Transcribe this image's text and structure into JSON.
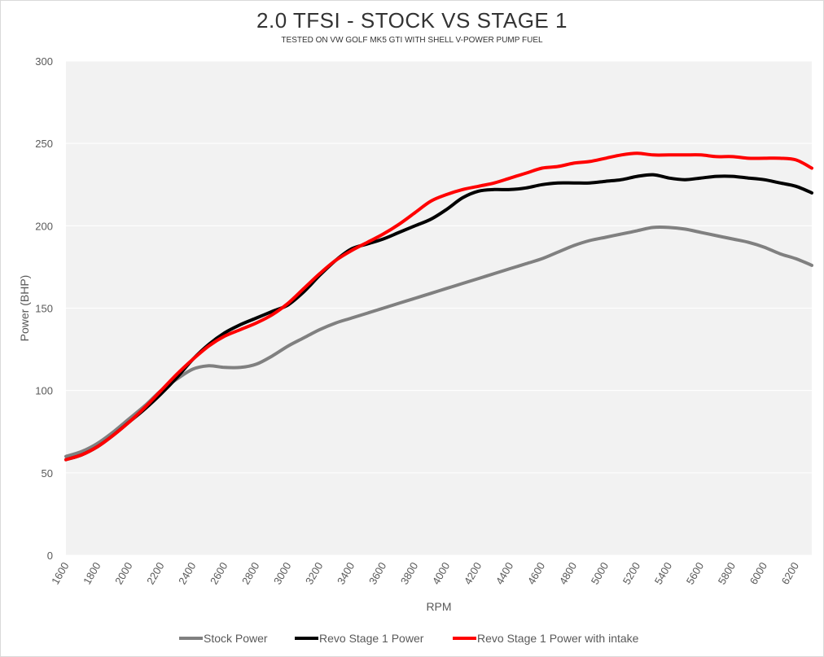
{
  "chart_data": {
    "type": "line",
    "title": "2.0 TFSI - STOCK VS STAGE 1",
    "subtitle": "TESTED ON VW GOLF MK5 GTI WITH SHELL V-POWER PUMP FUEL",
    "xlabel": "RPM",
    "ylabel": "Power (BHP)",
    "xlim": [
      1600,
      6300
    ],
    "ylim": [
      0,
      300
    ],
    "y_ticks": [
      0,
      50,
      100,
      150,
      200,
      250,
      300
    ],
    "x_ticks": [
      1600,
      1800,
      2000,
      2200,
      2400,
      2600,
      2800,
      3000,
      3200,
      3400,
      3600,
      3800,
      4000,
      4200,
      4400,
      4600,
      4800,
      5000,
      5200,
      5400,
      5600,
      5800,
      6000,
      6200
    ],
    "grid": "horizontal",
    "plot_background": "#f2f2f2",
    "legend_position": "bottom",
    "series": [
      {
        "name": "Stock Power",
        "color": "#808080",
        "x": [
          1600,
          1700,
          1800,
          1900,
          2000,
          2100,
          2200,
          2300,
          2400,
          2500,
          2600,
          2700,
          2800,
          2900,
          3000,
          3100,
          3200,
          3300,
          3400,
          3500,
          3600,
          3700,
          3800,
          3900,
          4000,
          4100,
          4200,
          4300,
          4400,
          4500,
          4600,
          4700,
          4800,
          4900,
          5000,
          5100,
          5200,
          5300,
          5400,
          5500,
          5600,
          5700,
          5800,
          5900,
          6000,
          6100,
          6200,
          6300
        ],
        "values": [
          60,
          63,
          68,
          75,
          83,
          91,
          100,
          107,
          113,
          115,
          114,
          114,
          116,
          121,
          127,
          132,
          137,
          141,
          144,
          147,
          150,
          153,
          156,
          159,
          162,
          165,
          168,
          171,
          174,
          177,
          180,
          184,
          188,
          191,
          193,
          195,
          197,
          199,
          199,
          198,
          196,
          194,
          192,
          190,
          187,
          183,
          180,
          176
        ]
      },
      {
        "name": "Revo Stage 1 Power",
        "color": "#000000",
        "x": [
          1600,
          1700,
          1800,
          1900,
          2000,
          2100,
          2200,
          2300,
          2400,
          2500,
          2600,
          2700,
          2800,
          2900,
          3000,
          3100,
          3200,
          3300,
          3400,
          3500,
          3600,
          3700,
          3800,
          3900,
          4000,
          4100,
          4200,
          4300,
          4400,
          4500,
          4600,
          4700,
          4800,
          4900,
          5000,
          5100,
          5200,
          5300,
          5400,
          5500,
          5600,
          5700,
          5800,
          5900,
          6000,
          6100,
          6200,
          6300
        ],
        "values": [
          58,
          61,
          66,
          73,
          81,
          89,
          98,
          108,
          119,
          128,
          135,
          140,
          144,
          148,
          152,
          160,
          170,
          179,
          186,
          189,
          192,
          196,
          200,
          204,
          210,
          217,
          221,
          222,
          222,
          223,
          225,
          226,
          226,
          226,
          227,
          228,
          230,
          231,
          229,
          228,
          229,
          230,
          230,
          229,
          228,
          226,
          224,
          220
        ]
      },
      {
        "name": "Revo Stage 1 Power with intake",
        "color": "#ff0000",
        "x": [
          1600,
          1700,
          1800,
          1900,
          2000,
          2100,
          2200,
          2300,
          2400,
          2500,
          2600,
          2700,
          2800,
          2900,
          3000,
          3100,
          3200,
          3300,
          3400,
          3500,
          3600,
          3700,
          3800,
          3900,
          4000,
          4100,
          4200,
          4300,
          4400,
          4500,
          4600,
          4700,
          4800,
          4900,
          5000,
          5100,
          5200,
          5300,
          5400,
          5500,
          5600,
          5700,
          5800,
          5900,
          6000,
          6100,
          6200,
          6300
        ],
        "values": [
          58,
          61,
          66,
          73,
          81,
          90,
          100,
          110,
          119,
          127,
          133,
          137,
          141,
          146,
          153,
          162,
          171,
          179,
          185,
          190,
          195,
          201,
          208,
          215,
          219,
          222,
          224,
          226,
          229,
          232,
          235,
          236,
          238,
          239,
          241,
          243,
          244,
          243,
          243,
          243,
          243,
          242,
          242,
          241,
          241,
          241,
          240,
          235
        ]
      }
    ]
  }
}
